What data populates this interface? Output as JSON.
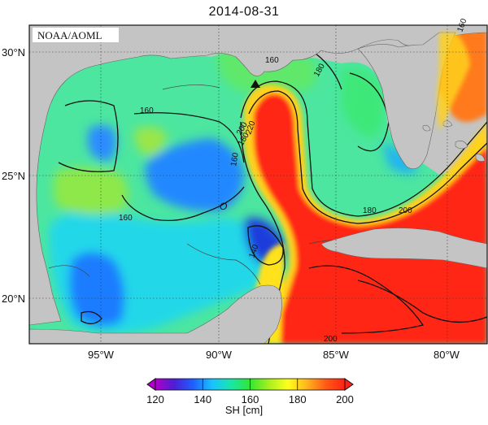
{
  "title": "2014-08-31",
  "source_label": "NOAA/AOML",
  "colorbar": {
    "label": "SH [cm]",
    "ticks": [
      "120",
      "140",
      "160",
      "180",
      "200"
    ],
    "min": 120,
    "max": 200,
    "colors": [
      "#b000c8",
      "#4b1fd6",
      "#1f5fff",
      "#19c3ff",
      "#19e6a8",
      "#32e632",
      "#a8f01e",
      "#ffff1e",
      "#ffb41e",
      "#ff5a14",
      "#ff2214"
    ]
  },
  "axes": {
    "lat_ticks": [
      "20°N",
      "25°N",
      "30°N"
    ],
    "lon_ticks": [
      "95°W",
      "90°W",
      "85°W",
      "80°W"
    ]
  },
  "contour_labels": [
    "160",
    "160",
    "160",
    "160",
    "180",
    "200",
    "220",
    "180",
    "180",
    "200",
    "200",
    "140",
    "160"
  ],
  "colors": {
    "land": "#c4c4c4",
    "grid": "#333333",
    "loop_current": "#ff2814"
  }
}
